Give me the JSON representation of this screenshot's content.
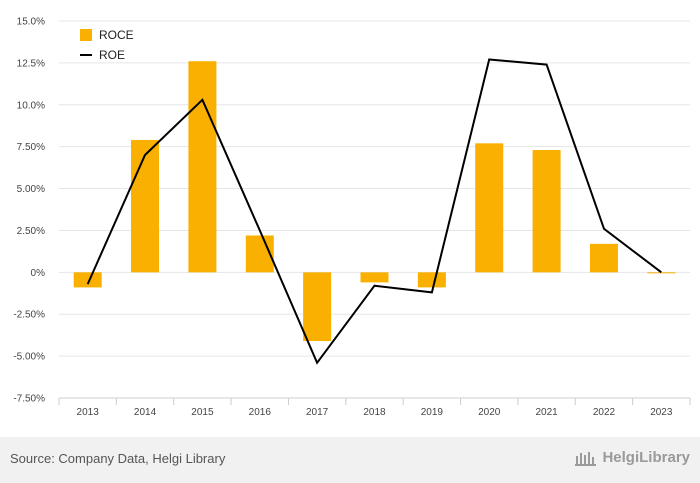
{
  "chart_data": {
    "type": "bar",
    "categories": [
      "2013",
      "2014",
      "2015",
      "2016",
      "2017",
      "2018",
      "2019",
      "2020",
      "2021",
      "2022",
      "2023"
    ],
    "series": [
      {
        "name": "ROCE",
        "type": "bar",
        "color": "#f9b000",
        "values": [
          -0.9,
          7.9,
          12.6,
          2.2,
          -4.1,
          -0.6,
          -0.9,
          7.7,
          7.3,
          1.7,
          -0.05
        ]
      },
      {
        "name": "ROE",
        "type": "line",
        "color": "#000000",
        "values": [
          -0.7,
          7.0,
          10.3,
          2.5,
          -5.4,
          -0.8,
          -1.2,
          12.7,
          12.4,
          2.6,
          0.0
        ]
      }
    ],
    "yticks": [
      "15.0%",
      "12.5%",
      "10.0%",
      "7.50%",
      "5.00%",
      "2.50%",
      "0%",
      "-2.50%",
      "-5.00%",
      "-7.50%"
    ],
    "ylim": [
      -7.5,
      15
    ],
    "grid": true,
    "legend": "top-left"
  },
  "source_text": "Source: Company Data, Helgi Library",
  "brand": "HelgiLibrary"
}
